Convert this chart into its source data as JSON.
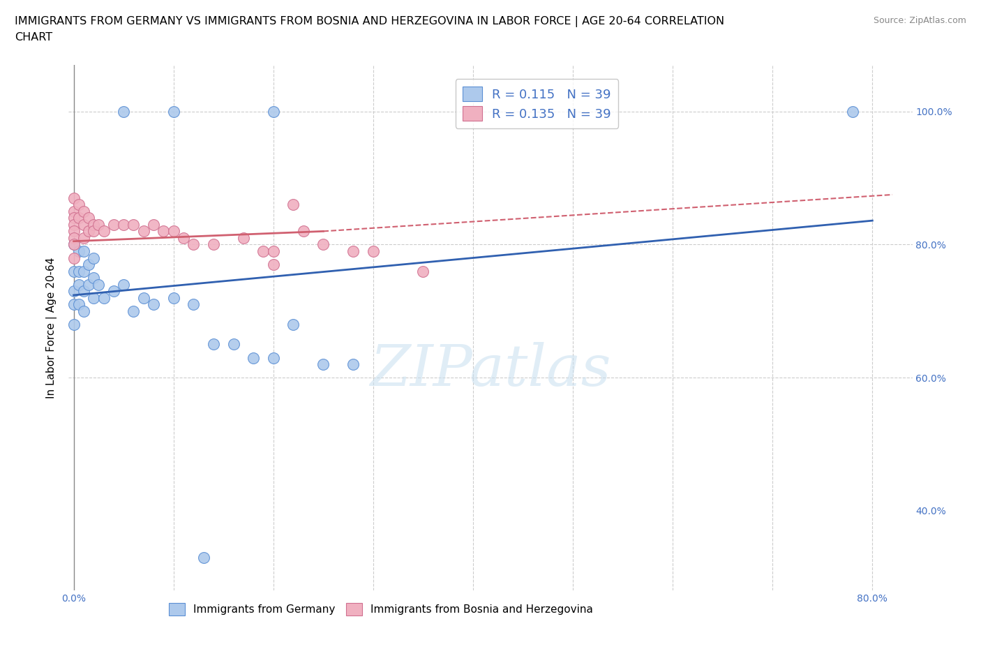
{
  "title_line1": "IMMIGRANTS FROM GERMANY VS IMMIGRANTS FROM BOSNIA AND HERZEGOVINA IN LABOR FORCE | AGE 20-64 CORRELATION",
  "title_line2": "CHART",
  "source_text": "Source: ZipAtlas.com",
  "ylabel": "In Labor Force | Age 20-64",
  "xlim": [
    -0.005,
    0.84
  ],
  "ylim": [
    0.28,
    1.07
  ],
  "blue_color": "#adc9ec",
  "blue_edge": "#5b8fd4",
  "pink_color": "#f0b0c0",
  "pink_edge": "#d07090",
  "trend_blue_color": "#3060b0",
  "trend_pink_color": "#d06070",
  "r_blue": 0.115,
  "n_blue": 39,
  "r_pink": 0.135,
  "n_pink": 39,
  "blue_x": [
    0.0,
    0.0,
    0.0,
    0.0,
    0.0,
    0.005,
    0.005,
    0.005,
    0.005,
    0.01,
    0.01,
    0.01,
    0.01,
    0.015,
    0.015,
    0.02,
    0.02,
    0.02,
    0.025,
    0.03,
    0.04,
    0.05,
    0.06,
    0.07,
    0.08,
    0.1,
    0.12,
    0.13,
    0.14,
    0.16,
    0.18,
    0.2,
    0.22,
    0.25,
    0.28,
    0.05,
    0.1,
    0.2,
    0.78
  ],
  "blue_y": [
    0.8,
    0.76,
    0.73,
    0.71,
    0.68,
    0.79,
    0.76,
    0.74,
    0.71,
    0.79,
    0.76,
    0.73,
    0.7,
    0.77,
    0.74,
    0.78,
    0.75,
    0.72,
    0.74,
    0.72,
    0.73,
    0.74,
    0.7,
    0.72,
    0.71,
    0.72,
    0.71,
    0.33,
    0.65,
    0.65,
    0.63,
    0.63,
    0.68,
    0.62,
    0.62,
    1.0,
    1.0,
    1.0,
    1.0
  ],
  "pink_x": [
    0.0,
    0.0,
    0.0,
    0.0,
    0.0,
    0.0,
    0.0,
    0.0,
    0.005,
    0.005,
    0.01,
    0.01,
    0.01,
    0.015,
    0.015,
    0.02,
    0.02,
    0.025,
    0.03,
    0.04,
    0.05,
    0.06,
    0.07,
    0.08,
    0.09,
    0.1,
    0.11,
    0.12,
    0.14,
    0.17,
    0.19,
    0.2,
    0.23,
    0.25,
    0.28,
    0.2,
    0.3,
    0.35,
    0.22
  ],
  "pink_y": [
    0.87,
    0.85,
    0.84,
    0.83,
    0.82,
    0.81,
    0.8,
    0.78,
    0.86,
    0.84,
    0.85,
    0.83,
    0.81,
    0.84,
    0.82,
    0.83,
    0.82,
    0.83,
    0.82,
    0.83,
    0.83,
    0.83,
    0.82,
    0.83,
    0.82,
    0.82,
    0.81,
    0.8,
    0.8,
    0.81,
    0.79,
    0.79,
    0.82,
    0.8,
    0.79,
    0.77,
    0.79,
    0.76,
    0.86
  ],
  "watermark": "ZIPatlas",
  "legend_labels": [
    "Immigrants from Germany",
    "Immigrants from Bosnia and Herzegovina"
  ],
  "title_fontsize": 11.5,
  "axis_label_fontsize": 11,
  "tick_fontsize": 10,
  "legend_fontsize": 13,
  "background_color": "#ffffff"
}
